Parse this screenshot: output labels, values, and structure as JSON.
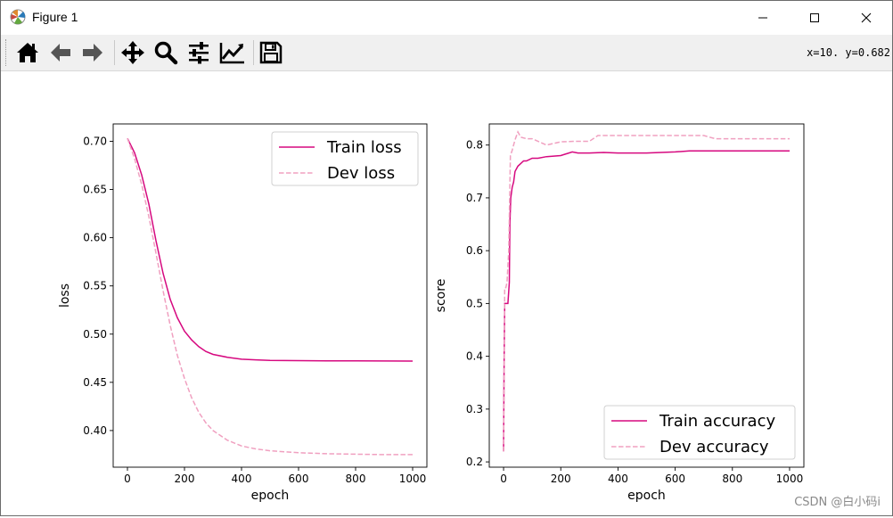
{
  "window": {
    "title": "Figure 1"
  },
  "toolbar": {
    "buttons": [
      {
        "name": "home",
        "icon": "home-icon"
      },
      {
        "name": "back",
        "icon": "arrow-left-icon"
      },
      {
        "name": "forward",
        "icon": "arrow-right-icon"
      },
      {
        "name": "pan",
        "icon": "move-icon"
      },
      {
        "name": "zoom",
        "icon": "magnifier-icon"
      },
      {
        "name": "subplots",
        "icon": "sliders-icon"
      },
      {
        "name": "customize",
        "icon": "line-chart-icon"
      },
      {
        "name": "save",
        "icon": "floppy-icon"
      }
    ],
    "coords": "x=10.  y=0.682"
  },
  "watermark": "CSDN @白小码i",
  "colors": {
    "train": "#d6087f",
    "dev": "#f0a0c0"
  },
  "chart_data": [
    {
      "type": "line",
      "xlabel": "epoch",
      "ylabel": "loss",
      "xlim": [
        -50,
        1050
      ],
      "ylim": [
        0.362,
        0.718
      ],
      "xticks": [
        0,
        200,
        400,
        600,
        800,
        1000
      ],
      "yticks": [
        0.4,
        0.45,
        0.5,
        0.55,
        0.6,
        0.65,
        0.7
      ],
      "ytick_labels": [
        "0.40",
        "0.45",
        "0.50",
        "0.55",
        "0.60",
        "0.65",
        "0.70"
      ],
      "legend": "upper-right",
      "series": [
        {
          "name": "Train loss",
          "style": "solid",
          "color": "#d6087f",
          "x": [
            0,
            25,
            50,
            75,
            100,
            125,
            150,
            175,
            200,
            225,
            250,
            275,
            300,
            350,
            400,
            450,
            500,
            600,
            700,
            800,
            900,
            1000
          ],
          "y": [
            0.703,
            0.688,
            0.665,
            0.635,
            0.597,
            0.563,
            0.536,
            0.517,
            0.503,
            0.494,
            0.487,
            0.482,
            0.479,
            0.476,
            0.474,
            0.4733,
            0.4728,
            0.4725,
            0.4723,
            0.4722,
            0.4721,
            0.472
          ]
        },
        {
          "name": "Dev loss",
          "style": "dashed",
          "color": "#f0a0c0",
          "x": [
            0,
            25,
            50,
            75,
            100,
            125,
            150,
            175,
            200,
            225,
            250,
            275,
            300,
            350,
            400,
            450,
            500,
            600,
            700,
            800,
            900,
            1000
          ],
          "y": [
            0.703,
            0.682,
            0.655,
            0.622,
            0.584,
            0.545,
            0.509,
            0.478,
            0.454,
            0.434,
            0.419,
            0.408,
            0.4,
            0.39,
            0.384,
            0.381,
            0.379,
            0.377,
            0.376,
            0.3755,
            0.375,
            0.375
          ]
        }
      ]
    },
    {
      "type": "line",
      "xlabel": "epoch",
      "ylabel": "score",
      "xlim": [
        -50,
        1050
      ],
      "ylim": [
        0.19,
        0.84
      ],
      "xticks": [
        0,
        200,
        400,
        600,
        800,
        1000
      ],
      "yticks": [
        0.2,
        0.3,
        0.4,
        0.5,
        0.6,
        0.7,
        0.8
      ],
      "ytick_labels": [
        "0.2",
        "0.3",
        "0.4",
        "0.5",
        "0.6",
        "0.7",
        "0.8"
      ],
      "legend": "lower-right",
      "series": [
        {
          "name": "Train accuracy",
          "style": "solid",
          "color": "#d6087f",
          "x": [
            0,
            2,
            4,
            6,
            8,
            10,
            15,
            20,
            22,
            25,
            30,
            35,
            40,
            50,
            60,
            70,
            80,
            100,
            120,
            150,
            200,
            240,
            260,
            300,
            350,
            400,
            450,
            500,
            550,
            600,
            650,
            700,
            800,
            900,
            1000
          ],
          "y": [
            0.22,
            0.4,
            0.5,
            0.5,
            0.5,
            0.5,
            0.5,
            0.54,
            0.65,
            0.7,
            0.72,
            0.73,
            0.75,
            0.76,
            0.765,
            0.77,
            0.77,
            0.775,
            0.775,
            0.778,
            0.78,
            0.787,
            0.785,
            0.785,
            0.786,
            0.785,
            0.785,
            0.785,
            0.786,
            0.787,
            0.789,
            0.789,
            0.789,
            0.789,
            0.789
          ]
        },
        {
          "name": "Dev accuracy",
          "style": "dashed",
          "color": "#f0a0c0",
          "x": [
            0,
            2,
            4,
            8,
            12,
            18,
            24,
            30,
            40,
            50,
            60,
            80,
            100,
            150,
            200,
            250,
            300,
            330,
            400,
            500,
            600,
            700,
            740,
            800,
            900,
            1000
          ],
          "y": [
            0.22,
            0.35,
            0.53,
            0.53,
            0.54,
            0.6,
            0.78,
            0.79,
            0.81,
            0.825,
            0.815,
            0.812,
            0.812,
            0.8,
            0.806,
            0.807,
            0.807,
            0.818,
            0.818,
            0.818,
            0.818,
            0.818,
            0.812,
            0.812,
            0.812,
            0.812
          ]
        }
      ]
    }
  ]
}
